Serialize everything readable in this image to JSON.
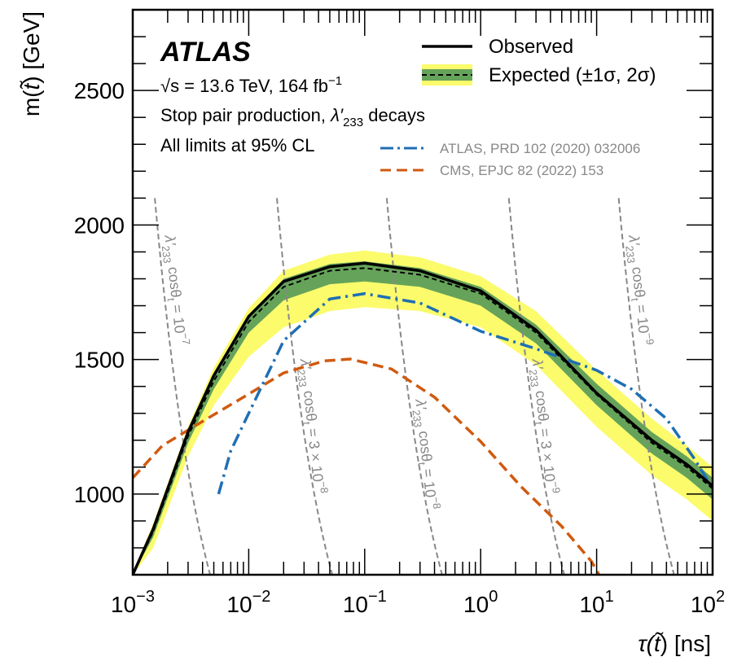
{
  "chart_data": {
    "type": "line",
    "xlabel": "τ(t̃) [ns]",
    "xlabel_parts": {
      "pre": "τ(",
      "var": "t̃",
      "post": ") [ns]"
    },
    "ylabel": "m(t̃) [GeV]",
    "ylabel_parts": {
      "pre": "m(",
      "var": "t̃",
      "post": ") [GeV]"
    },
    "xscale": "log",
    "xlim": [
      0.001,
      100
    ],
    "ylim": [
      700,
      2800
    ],
    "x_ticks": [
      {
        "base": "10",
        "exp": "−3"
      },
      {
        "base": "10",
        "exp": "−2"
      },
      {
        "base": "10",
        "exp": "−1"
      },
      {
        "base": "10",
        "exp": "0"
      },
      {
        "base": "10",
        "exp": "1"
      },
      {
        "base": "10",
        "exp": "2"
      }
    ],
    "y_ticks": [
      "1000",
      "1500",
      "2000",
      "2500"
    ],
    "grid": false,
    "legend_placement": "top-right",
    "experiment": "ATLAS",
    "info_lines": {
      "sqrt_s": "√s = 13.6 TeV, 164 fb",
      "sqrt_s_exp": "−1",
      "process_pre": "Stop pair production, ",
      "process_lambda": "λ′",
      "process_sub": "233",
      "process_post": " decays",
      "cl": "All limits at 95% CL"
    },
    "legend": {
      "observed": "Observed",
      "expected": "Expected (±1σ, 2σ)",
      "atlas_ref": "ATLAS, PRD 102 (2020) 032006",
      "cms_ref": "CMS, EPJC 82 (2022) 153"
    },
    "x": [
      0.001,
      0.0015,
      0.003,
      0.005,
      0.01,
      0.02,
      0.05,
      0.1,
      0.3,
      1,
      3,
      10,
      30,
      60,
      100
    ],
    "series": [
      {
        "name": "Observed",
        "values": [
          700,
          870,
          1230,
          1440,
          1660,
          1790,
          1845,
          1858,
          1830,
          1755,
          1610,
          1375,
          1200,
          1110,
          1030
        ]
      },
      {
        "name": "Expected",
        "values": [
          700,
          860,
          1215,
          1420,
          1640,
          1770,
          1830,
          1840,
          1815,
          1745,
          1600,
          1370,
          1190,
          1100,
          1020
        ]
      }
    ],
    "bands": {
      "minus1": [
        700,
        840,
        1190,
        1390,
        1600,
        1720,
        1780,
        1790,
        1770,
        1700,
        1560,
        1330,
        1150,
        1060,
        980
      ],
      "plus1": [
        705,
        875,
        1235,
        1450,
        1665,
        1800,
        1855,
        1865,
        1840,
        1770,
        1630,
        1410,
        1230,
        1140,
        1060
      ],
      "minus2": [
        700,
        800,
        1140,
        1330,
        1510,
        1620,
        1680,
        1695,
        1680,
        1620,
        1480,
        1250,
        1070,
        980,
        900
      ],
      "plus2": [
        710,
        890,
        1250,
        1470,
        1690,
        1830,
        1890,
        1905,
        1880,
        1810,
        1680,
        1460,
        1280,
        1180,
        1100
      ]
    },
    "reference_curves": [
      {
        "name": "ATLAS, PRD 102 (2020) 032006",
        "x": [
          0.0055,
          0.007,
          0.01,
          0.02,
          0.05,
          0.1,
          0.3,
          1,
          3,
          10,
          20,
          40,
          70,
          100
        ],
        "y": [
          1000,
          1160,
          1300,
          1570,
          1725,
          1745,
          1710,
          1605,
          1540,
          1460,
          1390,
          1280,
          1130,
          1020
        ]
      },
      {
        "name": "CMS, EPJC 82 (2022) 153",
        "x": [
          0.001,
          0.0018,
          0.004,
          0.009,
          0.02,
          0.045,
          0.075,
          0.17,
          0.4,
          1,
          2.2,
          5,
          9,
          10.5
        ],
        "y": [
          1060,
          1180,
          1270,
          1360,
          1450,
          1495,
          1502,
          1465,
          1360,
          1195,
          1030,
          880,
          750,
          700
        ]
      }
    ],
    "coupling_lines": {
      "label_lambda": "λ′",
      "label_sub": "233",
      "label_cos": "cosθ",
      "label_cos_sub": "t",
      "label_eq": " = ",
      "m_top": 2100,
      "lines": [
        {
          "tau_at_m_top": 0.00155,
          "prefix": "",
          "base": "10",
          "exp": "−7"
        },
        {
          "tau_at_m_top": 0.0175,
          "prefix": "3 × ",
          "base": "10",
          "exp": "−8"
        },
        {
          "tau_at_m_top": 0.155,
          "prefix": "",
          "base": "10",
          "exp": "−8"
        },
        {
          "tau_at_m_top": 1.75,
          "prefix": "3 × ",
          "base": "10",
          "exp": "−9"
        },
        {
          "tau_at_m_top": 15.5,
          "prefix": "",
          "base": "10",
          "exp": "−9"
        }
      ]
    },
    "colors": {
      "observed": "#000000",
      "band1": "#66a35a",
      "band2": "#fbfb6c",
      "atlas_ref": "#1f6fb4",
      "cms_ref": "#d05a10",
      "coupling": "#888888"
    }
  }
}
